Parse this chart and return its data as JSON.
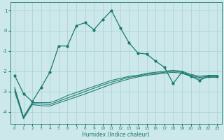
{
  "xlabel": "Humidex (Indice chaleur)",
  "bg_color": "#cce8ea",
  "line_color": "#1a7a6e",
  "grid_color": "#aacfd2",
  "x_ticks": [
    0,
    1,
    2,
    3,
    4,
    5,
    6,
    7,
    8,
    9,
    10,
    11,
    12,
    13,
    14,
    15,
    16,
    17,
    18,
    19,
    20,
    21,
    22,
    23
  ],
  "ylim": [
    -4.6,
    1.4
  ],
  "xlim": [
    -0.5,
    23.5
  ],
  "yticks": [
    -4,
    -3,
    -2,
    -1,
    0,
    1
  ],
  "series1_x": [
    0,
    1,
    2,
    3,
    4,
    5,
    6,
    7,
    8,
    9,
    10,
    11,
    12,
    13,
    14,
    15,
    16,
    17,
    18,
    19,
    20,
    21,
    22,
    23
  ],
  "series1_y": [
    -2.2,
    -3.1,
    -3.5,
    -2.8,
    -2.05,
    -0.75,
    -0.75,
    0.25,
    0.4,
    0.05,
    0.55,
    1.0,
    0.15,
    -0.6,
    -1.1,
    -1.15,
    -1.5,
    -1.8,
    -2.6,
    -2.05,
    -2.25,
    -2.45,
    -2.25,
    -2.25
  ],
  "series2_x": [
    0,
    1,
    2,
    3,
    4,
    5,
    6,
    7,
    8,
    9,
    10,
    11,
    12,
    13,
    14,
    15,
    16,
    17,
    18,
    19,
    20,
    21,
    22,
    23
  ],
  "series2_y": [
    -2.8,
    -4.25,
    -3.55,
    -3.55,
    -3.55,
    -3.4,
    -3.2,
    -3.05,
    -2.9,
    -2.75,
    -2.6,
    -2.45,
    -2.35,
    -2.25,
    -2.2,
    -2.1,
    -2.05,
    -2.0,
    -1.95,
    -2.0,
    -2.15,
    -2.25,
    -2.2,
    -2.2
  ],
  "series3_x": [
    0,
    1,
    2,
    3,
    4,
    5,
    6,
    7,
    8,
    9,
    10,
    11,
    12,
    13,
    14,
    15,
    16,
    17,
    18,
    19,
    20,
    21,
    22,
    23
  ],
  "series3_y": [
    -2.9,
    -4.3,
    -3.6,
    -3.62,
    -3.64,
    -3.48,
    -3.32,
    -3.16,
    -3.0,
    -2.84,
    -2.68,
    -2.54,
    -2.42,
    -2.3,
    -2.24,
    -2.15,
    -2.1,
    -2.05,
    -2.0,
    -2.05,
    -2.2,
    -2.3,
    -2.25,
    -2.25
  ],
  "series4_x": [
    0,
    1,
    2,
    3,
    4,
    5,
    6,
    7,
    8,
    9,
    10,
    11,
    12,
    13,
    14,
    15,
    16,
    17,
    18,
    19,
    20,
    21,
    22,
    23
  ],
  "series4_y": [
    -3.0,
    -4.35,
    -3.65,
    -3.7,
    -3.72,
    -3.56,
    -3.42,
    -3.27,
    -3.12,
    -2.96,
    -2.8,
    -2.64,
    -2.5,
    -2.38,
    -2.28,
    -2.2,
    -2.15,
    -2.1,
    -2.05,
    -2.1,
    -2.25,
    -2.35,
    -2.3,
    -2.3
  ]
}
